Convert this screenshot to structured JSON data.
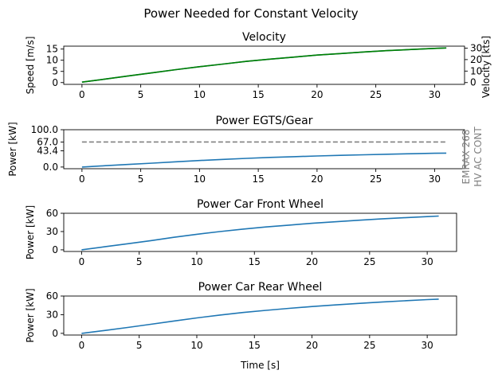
{
  "figure": {
    "title": "Power Needed for Constant Velocity"
  },
  "chart_data": [
    {
      "type": "line",
      "title": "Velocity",
      "xlabel": "",
      "ylabel": "Speed [m/s]",
      "ylabel_right": "Velocity [kts]",
      "xlim": [
        -1.55,
        32.55
      ],
      "ylim": [
        -0.8,
        16.3
      ],
      "ylim_right": [
        -1.56,
        31.7
      ],
      "xticks": [
        0,
        5,
        10,
        15,
        20,
        25,
        30
      ],
      "yticks": [
        0,
        5,
        10,
        15
      ],
      "yticks_right": [
        0,
        10,
        20,
        30
      ],
      "grid": false,
      "series": [
        {
          "axis": "left",
          "color": "#1f77b4",
          "x": [
            0,
            2,
            4,
            6,
            8,
            10,
            12,
            14,
            16,
            18,
            20,
            22,
            24,
            26,
            28,
            30,
            31
          ],
          "y": [
            0.2,
            1.6,
            3.0,
            4.4,
            5.8,
            7.1,
            8.3,
            9.5,
            10.5,
            11.4,
            12.3,
            13.0,
            13.7,
            14.3,
            14.8,
            15.3,
            15.5
          ]
        },
        {
          "axis": "right",
          "color": "#008000",
          "x": [
            0,
            2,
            4,
            6,
            8,
            10,
            12,
            14,
            16,
            18,
            20,
            22,
            24,
            26,
            28,
            30,
            31
          ],
          "y": [
            0.39,
            3.11,
            5.83,
            8.55,
            11.27,
            13.8,
            16.13,
            18.47,
            20.41,
            22.16,
            23.91,
            25.27,
            26.63,
            27.8,
            28.77,
            29.74,
            30.13
          ]
        }
      ]
    },
    {
      "type": "line",
      "title": "Power EGTS/Gear",
      "xlabel": "",
      "ylabel": "Power [kW]",
      "ylabel_right": "",
      "side_annotation": [
        "EMRAX 268",
        "HV AC CONT"
      ],
      "annotation_color": "#808080",
      "xlim": [
        -1.55,
        32.55
      ],
      "ylim": [
        -4.5,
        100
      ],
      "yticks": [
        0.0,
        43.4,
        67.0,
        100.0
      ],
      "ytick_labels": [
        "0.0",
        "43.4",
        "67.0",
        "100.0"
      ],
      "xticks": [
        0,
        5,
        10,
        15,
        20,
        25,
        30
      ],
      "grid": false,
      "reference_line": {
        "y": 67,
        "style": "dashed",
        "color": "#808080"
      },
      "series": [
        {
          "color": "#1f77b4",
          "x": [
            0,
            2,
            4,
            6,
            8,
            10,
            12,
            14,
            16,
            18,
            20,
            22,
            24,
            26,
            28,
            30,
            31
          ],
          "y": [
            0,
            3.5,
            7,
            10.5,
            14,
            17.5,
            20.5,
            23.3,
            25.7,
            27.8,
            29.7,
            31.4,
            32.9,
            34.3,
            35.6,
            36.8,
            37.4
          ]
        }
      ]
    },
    {
      "type": "line",
      "title": "Power Car Front Wheel",
      "xlabel": "",
      "ylabel": "Power [kW]",
      "xlim": [
        -1.55,
        32.55
      ],
      "ylim": [
        -2.7,
        60
      ],
      "yticks": [
        0,
        30,
        60
      ],
      "xticks": [
        0,
        5,
        10,
        15,
        20,
        25,
        30
      ],
      "grid": false,
      "series": [
        {
          "color": "#1f77b4",
          "x": [
            0,
            2,
            4,
            6,
            8,
            10,
            12,
            14,
            16,
            18,
            20,
            22,
            24,
            26,
            28,
            30,
            31
          ],
          "y": [
            0,
            5,
            10,
            15,
            20.5,
            25.5,
            30,
            34,
            37.5,
            40.5,
            43.5,
            46,
            48.5,
            50.7,
            52.7,
            54.5,
            55.4
          ]
        }
      ]
    },
    {
      "type": "line",
      "title": "Power Car Rear Wheel",
      "xlabel": "Time [s]",
      "ylabel": "Power [kW]",
      "xlim": [
        -1.55,
        32.55
      ],
      "ylim": [
        -2.7,
        60
      ],
      "yticks": [
        0,
        30,
        60
      ],
      "xticks": [
        0,
        5,
        10,
        15,
        20,
        25,
        30
      ],
      "grid": false,
      "series": [
        {
          "color": "#1f77b4",
          "x": [
            0,
            2,
            4,
            6,
            8,
            10,
            12,
            14,
            16,
            18,
            20,
            22,
            24,
            26,
            28,
            30,
            31
          ],
          "y": [
            0,
            4.6,
            9.5,
            14.6,
            19.8,
            24.8,
            29.4,
            33.5,
            37,
            40.2,
            43.1,
            45.7,
            48.1,
            50.3,
            52.3,
            54.2,
            55
          ]
        }
      ]
    }
  ]
}
